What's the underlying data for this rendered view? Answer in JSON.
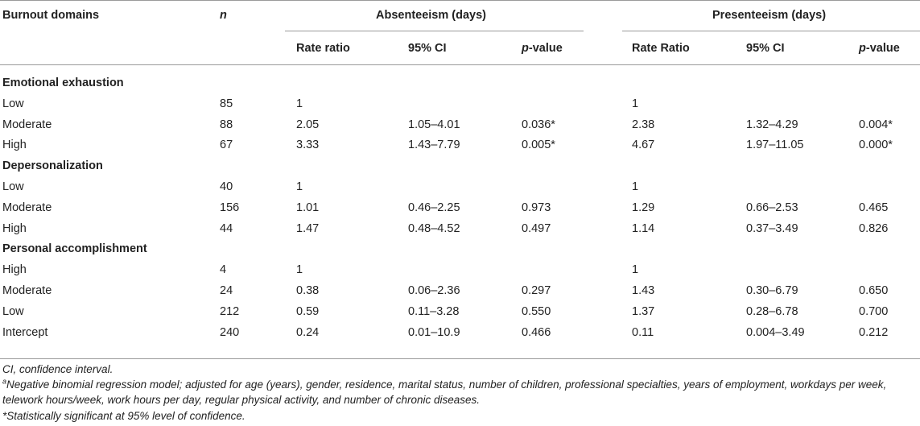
{
  "table": {
    "header": {
      "col_domain": "Burnout domains",
      "col_n": "n",
      "group_absenteeism": "Absenteeism (days)",
      "group_presenteeism": "Presenteeism (days)",
      "abs_rate": "Rate ratio",
      "abs_ci": "95% CI",
      "abs_p_italic": "p",
      "abs_p_rest": "-value",
      "pres_rate": "Rate Ratio",
      "pres_ci": "95% CI",
      "pres_p_italic": "p",
      "pres_p_rest": "-value"
    },
    "sections": [
      {
        "title": "Emotional exhaustion",
        "rows": [
          {
            "label": "Low",
            "n": "85",
            "abs_rr": "1",
            "abs_ci": "",
            "abs_p": "",
            "pres_rr": "1",
            "pres_ci": "",
            "pres_p": ""
          },
          {
            "label": "Moderate",
            "n": "88",
            "abs_rr": "2.05",
            "abs_ci": "1.05–4.01",
            "abs_p": "0.036*",
            "pres_rr": "2.38",
            "pres_ci": "1.32–4.29",
            "pres_p": "0.004*"
          },
          {
            "label": "High",
            "n": "67",
            "abs_rr": "3.33",
            "abs_ci": "1.43–7.79",
            "abs_p": "0.005*",
            "pres_rr": "4.67",
            "pres_ci": "1.97–11.05",
            "pres_p": "0.000*"
          }
        ]
      },
      {
        "title": "Depersonalization",
        "rows": [
          {
            "label": "Low",
            "n": "40",
            "abs_rr": "1",
            "abs_ci": "",
            "abs_p": "",
            "pres_rr": "1",
            "pres_ci": "",
            "pres_p": ""
          },
          {
            "label": "Moderate",
            "n": "156",
            "abs_rr": "1.01",
            "abs_ci": "0.46–2.25",
            "abs_p": "0.973",
            "pres_rr": "1.29",
            "pres_ci": "0.66–2.53",
            "pres_p": "0.465"
          },
          {
            "label": "High",
            "n": "44",
            "abs_rr": "1.47",
            "abs_ci": "0.48–4.52",
            "abs_p": "0.497",
            "pres_rr": "1.14",
            "pres_ci": "0.37–3.49",
            "pres_p": "0.826"
          }
        ]
      },
      {
        "title": "Personal accomplishment",
        "rows": [
          {
            "label": "High",
            "n": "4",
            "abs_rr": "1",
            "abs_ci": "",
            "abs_p": "",
            "pres_rr": "1",
            "pres_ci": "",
            "pres_p": ""
          },
          {
            "label": "Moderate",
            "n": "24",
            "abs_rr": "0.38",
            "abs_ci": "0.06–2.36",
            "abs_p": "0.297",
            "pres_rr": "1.43",
            "pres_ci": "0.30–6.79",
            "pres_p": "0.650"
          },
          {
            "label": "Low",
            "n": "212",
            "abs_rr": "0.59",
            "abs_ci": "0.11–3.28",
            "abs_p": "0.550",
            "pres_rr": "1.37",
            "pres_ci": "0.28–6.78",
            "pres_p": "0.700"
          },
          {
            "label": "Intercept",
            "n": "240",
            "abs_rr": "0.24",
            "abs_ci": "0.01–10.9",
            "abs_p": "0.466",
            "pres_rr": "0.11",
            "pres_ci": "0.004–3.49",
            "pres_p": "0.212"
          }
        ]
      }
    ]
  },
  "footnotes": {
    "ci": "CI, confidence interval.",
    "model_sup": "a",
    "model_line1": "Negative binomial regression model; adjusted for age (years), gender, residence, marital status, number of children, professional specialties, years of employment, workdays per week,",
    "model_line2": "telework hours/week, work hours per day, regular physical activity, and number of chronic diseases.",
    "significance": "*Statistically significant at 95% level of confidence."
  }
}
